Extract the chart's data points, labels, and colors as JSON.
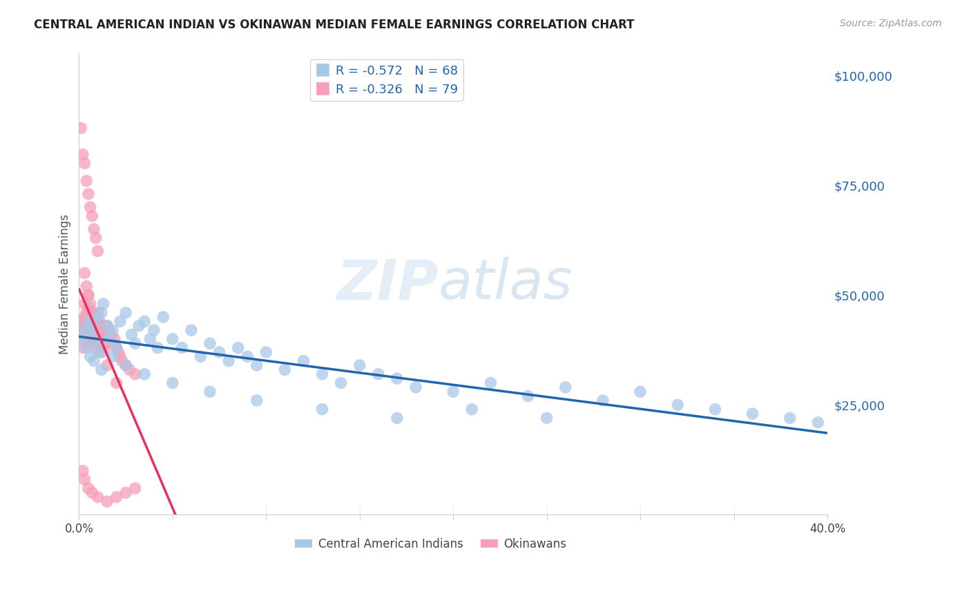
{
  "title": "CENTRAL AMERICAN INDIAN VS OKINAWAN MEDIAN FEMALE EARNINGS CORRELATION CHART",
  "source": "Source: ZipAtlas.com",
  "ylabel": "Median Female Earnings",
  "yticks": [
    0,
    25000,
    50000,
    75000,
    100000
  ],
  "ytick_labels": [
    "",
    "$25,000",
    "$50,000",
    "$75,000",
    "$100,000"
  ],
  "xlim": [
    0.0,
    0.4
  ],
  "ylim": [
    0,
    105000
  ],
  "legend_blue_r": "R = -0.572",
  "legend_blue_n": "N = 68",
  "legend_pink_r": "R = -0.326",
  "legend_pink_n": "N = 79",
  "legend_blue_label": "Central American Indians",
  "legend_pink_label": "Okinawans",
  "blue_color": "#a8c8e8",
  "pink_color": "#f4a0b8",
  "blue_line_color": "#2166ac",
  "pink_line_color": "#e8305a",
  "watermark_zip": "ZIP",
  "watermark_atlas": "atlas",
  "blue_scatter_x": [
    0.002,
    0.003,
    0.004,
    0.005,
    0.006,
    0.007,
    0.008,
    0.009,
    0.01,
    0.011,
    0.012,
    0.013,
    0.015,
    0.016,
    0.018,
    0.02,
    0.022,
    0.025,
    0.028,
    0.03,
    0.032,
    0.035,
    0.038,
    0.04,
    0.042,
    0.045,
    0.05,
    0.055,
    0.06,
    0.065,
    0.07,
    0.075,
    0.08,
    0.085,
    0.09,
    0.095,
    0.1,
    0.11,
    0.12,
    0.13,
    0.14,
    0.15,
    0.16,
    0.17,
    0.18,
    0.2,
    0.22,
    0.24,
    0.26,
    0.28,
    0.3,
    0.32,
    0.34,
    0.36,
    0.38,
    0.395,
    0.008,
    0.012,
    0.018,
    0.025,
    0.035,
    0.05,
    0.07,
    0.095,
    0.13,
    0.17,
    0.21,
    0.25
  ],
  "blue_scatter_y": [
    40000,
    42000,
    38000,
    44000,
    36000,
    43000,
    41000,
    39000,
    45000,
    37000,
    46000,
    48000,
    43000,
    40000,
    42000,
    38000,
    44000,
    46000,
    41000,
    39000,
    43000,
    44000,
    40000,
    42000,
    38000,
    45000,
    40000,
    38000,
    42000,
    36000,
    39000,
    37000,
    35000,
    38000,
    36000,
    34000,
    37000,
    33000,
    35000,
    32000,
    30000,
    34000,
    32000,
    31000,
    29000,
    28000,
    30000,
    27000,
    29000,
    26000,
    28000,
    25000,
    24000,
    23000,
    22000,
    21000,
    35000,
    33000,
    36000,
    34000,
    32000,
    30000,
    28000,
    26000,
    24000,
    22000,
    24000,
    22000
  ],
  "pink_scatter_x": [
    0.001,
    0.001,
    0.002,
    0.002,
    0.002,
    0.003,
    0.003,
    0.003,
    0.004,
    0.004,
    0.004,
    0.005,
    0.005,
    0.005,
    0.005,
    0.006,
    0.006,
    0.006,
    0.007,
    0.007,
    0.007,
    0.008,
    0.008,
    0.008,
    0.009,
    0.009,
    0.01,
    0.01,
    0.01,
    0.011,
    0.011,
    0.012,
    0.012,
    0.013,
    0.013,
    0.014,
    0.014,
    0.015,
    0.015,
    0.016,
    0.017,
    0.018,
    0.019,
    0.02,
    0.021,
    0.022,
    0.023,
    0.025,
    0.027,
    0.03,
    0.001,
    0.002,
    0.003,
    0.004,
    0.005,
    0.006,
    0.007,
    0.008,
    0.009,
    0.01,
    0.003,
    0.004,
    0.005,
    0.006,
    0.007,
    0.008,
    0.01,
    0.012,
    0.015,
    0.02,
    0.002,
    0.003,
    0.005,
    0.007,
    0.01,
    0.015,
    0.02,
    0.025,
    0.03
  ],
  "pink_scatter_y": [
    42000,
    44000,
    40000,
    43000,
    38000,
    45000,
    48000,
    41000,
    46000,
    43000,
    39000,
    47000,
    44000,
    42000,
    50000,
    46000,
    43000,
    40000,
    45000,
    42000,
    39000,
    44000,
    41000,
    38000,
    43000,
    40000,
    46000,
    43000,
    40000,
    44000,
    41000,
    43000,
    40000,
    42000,
    39000,
    41000,
    38000,
    43000,
    40000,
    42000,
    41000,
    39000,
    40000,
    38000,
    37000,
    36000,
    35000,
    34000,
    33000,
    32000,
    88000,
    82000,
    80000,
    76000,
    73000,
    70000,
    68000,
    65000,
    63000,
    60000,
    55000,
    52000,
    50000,
    48000,
    46000,
    44000,
    40000,
    37000,
    34000,
    30000,
    10000,
    8000,
    6000,
    5000,
    4000,
    3000,
    4000,
    5000,
    6000
  ]
}
